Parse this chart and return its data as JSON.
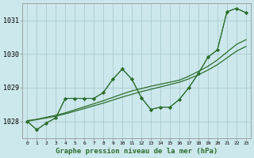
{
  "background_color": "#cce8ec",
  "grid_color": "#aaccd0",
  "line_color": "#2d6e2d",
  "xlabel": "Graphe pression niveau de la mer (hPa)",
  "xlim": [
    -0.5,
    23.5
  ],
  "ylim": [
    1027.5,
    1031.5
  ],
  "yticks": [
    1028,
    1029,
    1030,
    1031
  ],
  "xticks": [
    0,
    1,
    2,
    3,
    4,
    5,
    6,
    7,
    8,
    9,
    10,
    11,
    12,
    13,
    14,
    15,
    16,
    17,
    18,
    19,
    20,
    21,
    22,
    23
  ],
  "series_jagged1": [
    1028.0,
    1027.75,
    1027.95,
    1028.1,
    1028.68,
    1028.68,
    1028.68,
    1028.68,
    1028.85,
    1029.25,
    1029.55,
    1029.25,
    1028.7,
    1028.35,
    1028.42,
    1028.42,
    1028.65,
    1029.0,
    1029.42,
    1029.9,
    1030.12,
    1031.25,
    1031.35,
    1031.22
  ],
  "series_jagged2": [
    1028.0,
    1027.75,
    1027.95,
    1028.1,
    1028.68,
    1028.68,
    1028.68,
    1028.68,
    1028.85,
    1029.25,
    1029.55,
    1029.25,
    1028.7,
    1028.35,
    1028.42,
    1028.42,
    1028.65,
    1029.0,
    1029.42,
    1029.9,
    1030.12,
    1031.25,
    1031.35,
    1031.22
  ],
  "series_linear1": [
    1028.0,
    1028.05,
    1028.1,
    1028.15,
    1028.22,
    1028.3,
    1028.38,
    1028.46,
    1028.54,
    1028.63,
    1028.72,
    1028.8,
    1028.88,
    1028.95,
    1029.02,
    1029.09,
    1029.16,
    1029.26,
    1029.38,
    1029.52,
    1029.68,
    1029.88,
    1030.08,
    1030.22
  ],
  "series_linear2": [
    1028.02,
    1028.06,
    1028.12,
    1028.18,
    1028.25,
    1028.34,
    1028.43,
    1028.52,
    1028.61,
    1028.71,
    1028.81,
    1028.9,
    1028.97,
    1029.04,
    1029.1,
    1029.16,
    1029.22,
    1029.34,
    1029.48,
    1029.63,
    1029.82,
    1030.05,
    1030.28,
    1030.42
  ]
}
